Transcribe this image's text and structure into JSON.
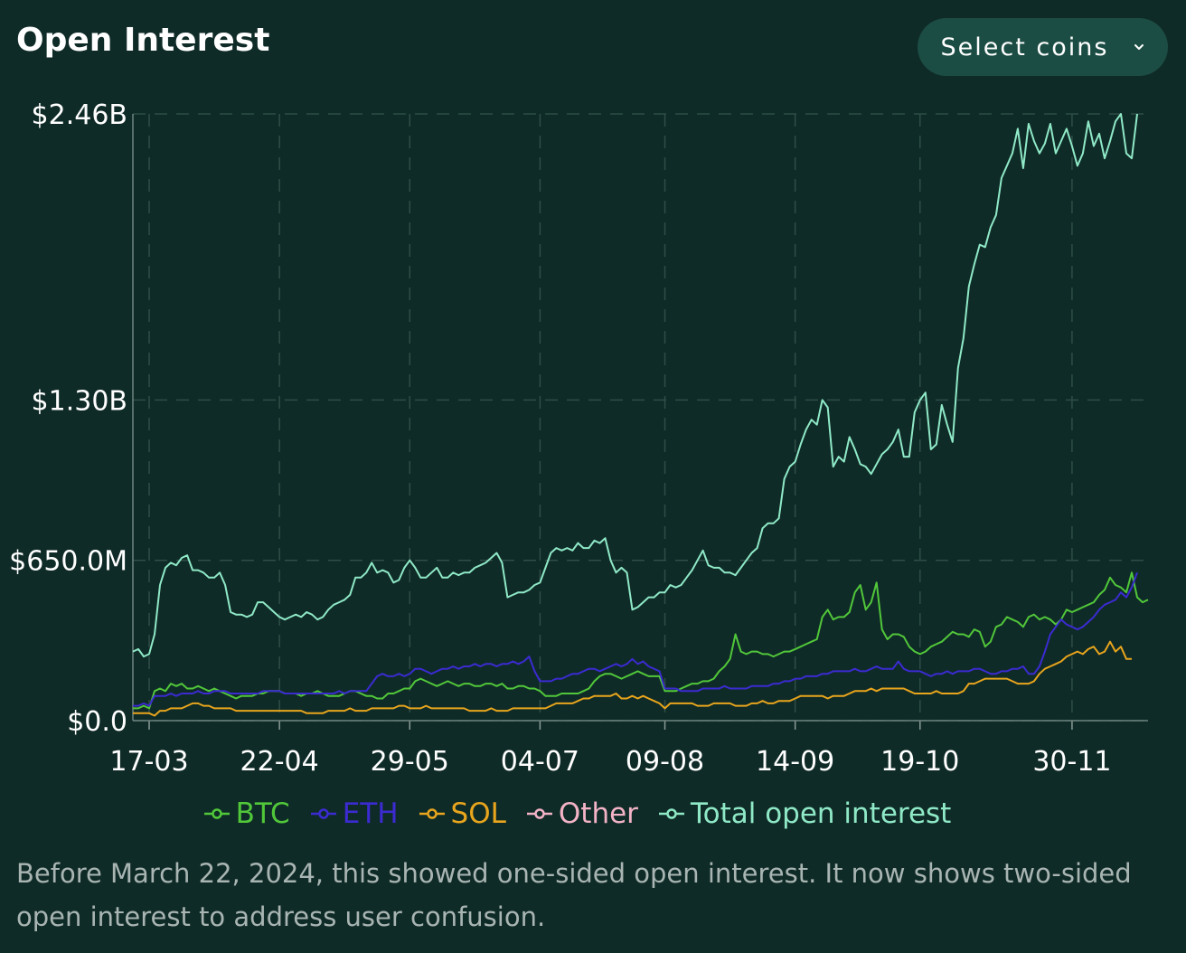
{
  "header": {
    "title": "Open Interest",
    "select_label": "Select coins",
    "select_icon": "chevron-down-icon"
  },
  "chart_data": {
    "type": "line",
    "x_ticks": [
      "17-03",
      "22-04",
      "29-05",
      "04-07",
      "09-08",
      "14-09",
      "19-10",
      "30-11"
    ],
    "x_tick_index": [
      3,
      27,
      51,
      75,
      98,
      122,
      145,
      173
    ],
    "y_ticks": [
      "$2.46B",
      "$1.30B",
      "$650.0M",
      "$0.0"
    ],
    "y_tick_values": [
      2.46,
      1.3,
      0.65,
      0.0
    ],
    "ylim": [
      0,
      2.46
    ],
    "y_unit": "B",
    "grid": true,
    "legend_position": "bottom",
    "series": [
      {
        "name": "BTC",
        "color": "#51c73a",
        "values": [
          0.05,
          0.05,
          0.06,
          0.05,
          0.12,
          0.13,
          0.12,
          0.15,
          0.14,
          0.15,
          0.13,
          0.13,
          0.14,
          0.13,
          0.12,
          0.13,
          0.12,
          0.11,
          0.1,
          0.09,
          0.1,
          0.1,
          0.1,
          0.11,
          0.11,
          0.12,
          0.12,
          0.12,
          0.11,
          0.11,
          0.11,
          0.1,
          0.11,
          0.11,
          0.12,
          0.11,
          0.1,
          0.1,
          0.1,
          0.11,
          0.12,
          0.12,
          0.11,
          0.1,
          0.1,
          0.09,
          0.09,
          0.11,
          0.11,
          0.12,
          0.13,
          0.13,
          0.16,
          0.17,
          0.16,
          0.15,
          0.14,
          0.15,
          0.16,
          0.15,
          0.14,
          0.15,
          0.15,
          0.14,
          0.14,
          0.15,
          0.15,
          0.14,
          0.15,
          0.13,
          0.13,
          0.14,
          0.14,
          0.13,
          0.13,
          0.12,
          0.1,
          0.1,
          0.1,
          0.11,
          0.11,
          0.11,
          0.11,
          0.12,
          0.13,
          0.16,
          0.18,
          0.19,
          0.19,
          0.18,
          0.17,
          0.18,
          0.19,
          0.2,
          0.19,
          0.18,
          0.18,
          0.18,
          0.12,
          0.12,
          0.12,
          0.13,
          0.14,
          0.15,
          0.15,
          0.16,
          0.16,
          0.17,
          0.2,
          0.22,
          0.25,
          0.35,
          0.28,
          0.27,
          0.28,
          0.28,
          0.27,
          0.27,
          0.26,
          0.27,
          0.28,
          0.28,
          0.29,
          0.3,
          0.31,
          0.32,
          0.33,
          0.42,
          0.45,
          0.41,
          0.42,
          0.42,
          0.44,
          0.52,
          0.55,
          0.45,
          0.48,
          0.56,
          0.37,
          0.33,
          0.35,
          0.35,
          0.34,
          0.3,
          0.28,
          0.27,
          0.28,
          0.3,
          0.31,
          0.32,
          0.34,
          0.36,
          0.35,
          0.35,
          0.34,
          0.37,
          0.36,
          0.3,
          0.32,
          0.38,
          0.39,
          0.42,
          0.41,
          0.4,
          0.38,
          0.42,
          0.43,
          0.41,
          0.42,
          0.41,
          0.39,
          0.41,
          0.45,
          0.44,
          0.45,
          0.46,
          0.47,
          0.48,
          0.51,
          0.53,
          0.58,
          0.55,
          0.54,
          0.52,
          0.6,
          0.5,
          0.48,
          0.49
        ]
      },
      {
        "name": "ETH",
        "color": "#3b2bd1",
        "values": [
          0.06,
          0.06,
          0.07,
          0.06,
          0.1,
          0.1,
          0.1,
          0.11,
          0.1,
          0.11,
          0.11,
          0.11,
          0.12,
          0.11,
          0.11,
          0.12,
          0.12,
          0.12,
          0.11,
          0.11,
          0.11,
          0.11,
          0.11,
          0.11,
          0.12,
          0.12,
          0.12,
          0.12,
          0.11,
          0.11,
          0.11,
          0.11,
          0.11,
          0.11,
          0.11,
          0.11,
          0.11,
          0.11,
          0.12,
          0.11,
          0.12,
          0.12,
          0.12,
          0.12,
          0.15,
          0.18,
          0.19,
          0.18,
          0.18,
          0.19,
          0.18,
          0.19,
          0.21,
          0.21,
          0.2,
          0.19,
          0.2,
          0.21,
          0.21,
          0.22,
          0.21,
          0.22,
          0.22,
          0.23,
          0.22,
          0.23,
          0.23,
          0.22,
          0.23,
          0.23,
          0.24,
          0.23,
          0.24,
          0.26,
          0.2,
          0.16,
          0.16,
          0.16,
          0.17,
          0.17,
          0.18,
          0.19,
          0.19,
          0.2,
          0.21,
          0.21,
          0.2,
          0.21,
          0.22,
          0.23,
          0.22,
          0.23,
          0.25,
          0.23,
          0.24,
          0.22,
          0.21,
          0.2,
          0.13,
          0.13,
          0.13,
          0.12,
          0.12,
          0.12,
          0.12,
          0.13,
          0.13,
          0.13,
          0.13,
          0.14,
          0.13,
          0.13,
          0.13,
          0.13,
          0.14,
          0.14,
          0.14,
          0.14,
          0.15,
          0.15,
          0.16,
          0.16,
          0.17,
          0.17,
          0.18,
          0.18,
          0.18,
          0.19,
          0.19,
          0.2,
          0.2,
          0.2,
          0.2,
          0.21,
          0.2,
          0.2,
          0.21,
          0.22,
          0.21,
          0.21,
          0.21,
          0.24,
          0.21,
          0.2,
          0.2,
          0.2,
          0.19,
          0.18,
          0.19,
          0.19,
          0.2,
          0.19,
          0.2,
          0.2,
          0.2,
          0.21,
          0.21,
          0.2,
          0.19,
          0.19,
          0.2,
          0.2,
          0.21,
          0.21,
          0.22,
          0.19,
          0.19,
          0.22,
          0.28,
          0.35,
          0.38,
          0.41,
          0.39,
          0.38,
          0.37,
          0.38,
          0.4,
          0.42,
          0.45,
          0.47,
          0.48,
          0.49,
          0.52,
          0.5,
          0.54,
          0.6
        ]
      },
      {
        "name": "SOL",
        "color": "#e8a51d",
        "values": [
          0.03,
          0.03,
          0.03,
          0.03,
          0.02,
          0.04,
          0.04,
          0.05,
          0.05,
          0.05,
          0.06,
          0.07,
          0.07,
          0.06,
          0.06,
          0.05,
          0.05,
          0.05,
          0.05,
          0.04,
          0.04,
          0.04,
          0.04,
          0.04,
          0.04,
          0.04,
          0.04,
          0.04,
          0.04,
          0.04,
          0.04,
          0.04,
          0.03,
          0.03,
          0.03,
          0.03,
          0.04,
          0.04,
          0.04,
          0.04,
          0.05,
          0.04,
          0.04,
          0.04,
          0.05,
          0.05,
          0.05,
          0.05,
          0.05,
          0.06,
          0.06,
          0.05,
          0.05,
          0.05,
          0.06,
          0.05,
          0.05,
          0.05,
          0.05,
          0.05,
          0.05,
          0.05,
          0.04,
          0.04,
          0.04,
          0.04,
          0.05,
          0.04,
          0.04,
          0.04,
          0.05,
          0.05,
          0.05,
          0.05,
          0.05,
          0.05,
          0.05,
          0.06,
          0.07,
          0.07,
          0.07,
          0.07,
          0.08,
          0.09,
          0.09,
          0.1,
          0.1,
          0.1,
          0.1,
          0.11,
          0.09,
          0.09,
          0.1,
          0.09,
          0.1,
          0.09,
          0.08,
          0.07,
          0.05,
          0.07,
          0.07,
          0.07,
          0.07,
          0.07,
          0.06,
          0.06,
          0.06,
          0.07,
          0.07,
          0.07,
          0.07,
          0.06,
          0.06,
          0.06,
          0.07,
          0.07,
          0.08,
          0.07,
          0.07,
          0.08,
          0.08,
          0.08,
          0.09,
          0.1,
          0.1,
          0.1,
          0.1,
          0.1,
          0.09,
          0.1,
          0.1,
          0.1,
          0.11,
          0.12,
          0.12,
          0.12,
          0.13,
          0.12,
          0.13,
          0.13,
          0.13,
          0.13,
          0.13,
          0.12,
          0.11,
          0.11,
          0.11,
          0.11,
          0.12,
          0.11,
          0.11,
          0.11,
          0.11,
          0.12,
          0.15,
          0.15,
          0.16,
          0.17,
          0.17,
          0.17,
          0.17,
          0.17,
          0.16,
          0.15,
          0.15,
          0.15,
          0.16,
          0.19,
          0.21,
          0.22,
          0.23,
          0.24,
          0.26,
          0.27,
          0.28,
          0.27,
          0.29,
          0.3,
          0.27,
          0.28,
          0.32,
          0.28,
          0.3,
          0.25,
          0.25
        ]
      },
      {
        "name": "Other",
        "color": "#f2b3c6",
        "values": []
      },
      {
        "name": "Total open interest",
        "color": "#8fe9c7",
        "values": [
          0.28,
          0.29,
          0.26,
          0.27,
          0.35,
          0.55,
          0.62,
          0.64,
          0.63,
          0.66,
          0.67,
          0.61,
          0.61,
          0.6,
          0.58,
          0.58,
          0.6,
          0.55,
          0.44,
          0.43,
          0.43,
          0.42,
          0.43,
          0.48,
          0.48,
          0.46,
          0.44,
          0.42,
          0.41,
          0.42,
          0.43,
          0.42,
          0.44,
          0.43,
          0.41,
          0.42,
          0.45,
          0.47,
          0.48,
          0.49,
          0.51,
          0.58,
          0.58,
          0.6,
          0.64,
          0.6,
          0.61,
          0.6,
          0.56,
          0.57,
          0.62,
          0.65,
          0.62,
          0.58,
          0.58,
          0.6,
          0.62,
          0.58,
          0.58,
          0.6,
          0.59,
          0.6,
          0.6,
          0.62,
          0.63,
          0.64,
          0.66,
          0.68,
          0.64,
          0.5,
          0.51,
          0.52,
          0.52,
          0.53,
          0.55,
          0.56,
          0.62,
          0.68,
          0.7,
          0.69,
          0.7,
          0.69,
          0.72,
          0.7,
          0.7,
          0.73,
          0.72,
          0.74,
          0.65,
          0.6,
          0.62,
          0.6,
          0.45,
          0.46,
          0.48,
          0.5,
          0.5,
          0.52,
          0.52,
          0.55,
          0.54,
          0.55,
          0.58,
          0.61,
          0.65,
          0.69,
          0.63,
          0.62,
          0.62,
          0.6,
          0.6,
          0.59,
          0.62,
          0.65,
          0.68,
          0.7,
          0.78,
          0.8,
          0.8,
          0.82,
          0.98,
          1.03,
          1.05,
          1.12,
          1.18,
          1.22,
          1.2,
          1.3,
          1.27,
          1.03,
          1.07,
          1.05,
          1.15,
          1.1,
          1.04,
          1.03,
          1.0,
          1.04,
          1.08,
          1.1,
          1.13,
          1.18,
          1.07,
          1.07,
          1.25,
          1.3,
          1.33,
          1.1,
          1.12,
          1.28,
          1.2,
          1.13,
          1.43,
          1.55,
          1.76,
          1.85,
          1.93,
          1.92,
          2.0,
          2.05,
          2.2,
          2.25,
          2.3,
          2.4,
          2.24,
          2.42,
          2.35,
          2.3,
          2.34,
          2.42,
          2.3,
          2.35,
          2.4,
          2.33,
          2.25,
          2.3,
          2.43,
          2.33,
          2.38,
          2.28,
          2.35,
          2.43,
          2.46,
          2.3,
          2.28,
          2.46
        ]
      }
    ]
  },
  "footnote": "Before March 22, 2024, this showed one-sided open interest. It now shows two-sided open interest to address user confusion."
}
